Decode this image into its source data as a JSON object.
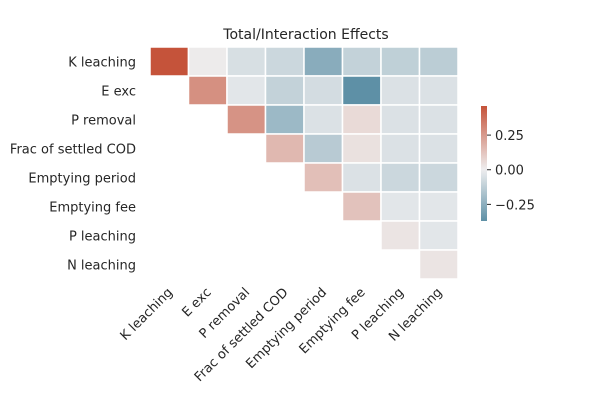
{
  "chart_data": {
    "type": "heatmap",
    "title": "Total/Interaction Effects",
    "xlabel": "",
    "ylabel": "",
    "row_labels": [
      "K leaching",
      "E exc",
      "P removal",
      "Frac of settled COD",
      "Emptying period",
      "Emptying fee",
      "P leaching",
      "N leaching"
    ],
    "col_labels": [
      "K leaching",
      "E exc",
      "P removal",
      "Frac of settled COD",
      "Emptying period",
      "Emptying fee",
      "P leaching",
      "N leaching"
    ],
    "mask": "lower-triangle",
    "values": [
      [
        0.46,
        0.01,
        -0.06,
        -0.09,
        -0.26,
        -0.11,
        -0.12,
        -0.13
      ],
      [
        null,
        0.28,
        -0.03,
        -0.11,
        -0.07,
        -0.37,
        -0.05,
        -0.05
      ],
      [
        null,
        null,
        0.27,
        -0.21,
        -0.05,
        0.06,
        -0.05,
        -0.05
      ],
      [
        null,
        null,
        null,
        0.16,
        -0.14,
        0.04,
        -0.05,
        -0.05
      ],
      [
        null,
        null,
        null,
        null,
        0.14,
        -0.05,
        -0.09,
        -0.09
      ],
      [
        null,
        null,
        null,
        null,
        null,
        0.13,
        -0.03,
        -0.03
      ],
      [
        null,
        null,
        null,
        null,
        null,
        null,
        0.03,
        -0.03
      ],
      [
        null,
        null,
        null,
        null,
        null,
        null,
        null,
        0.03
      ]
    ],
    "colorbar": {
      "min": -0.37,
      "max": 0.46,
      "ticks": [
        0.25,
        0.0,
        -0.25
      ],
      "tick_labels": [
        "0.25",
        "0.00",
        "−0.25"
      ]
    },
    "colors": {
      "negative": "#5e90a6",
      "center": "#eeeeef",
      "positive": "#c5533a",
      "gridline": "#ffffff"
    }
  }
}
